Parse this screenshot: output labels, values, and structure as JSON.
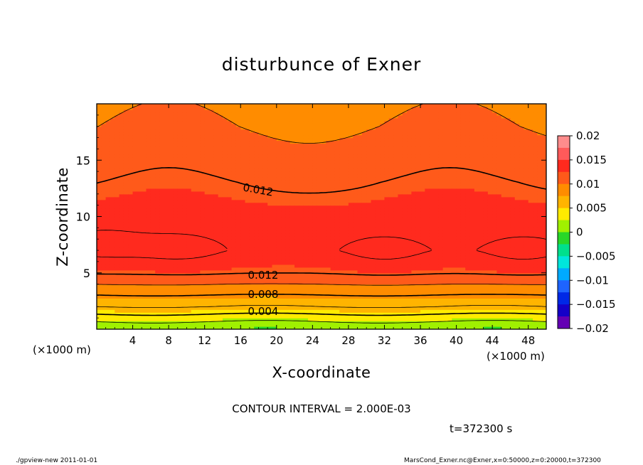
{
  "title": "disturbunce of Exner",
  "contour_interval_text": "CONTOUR INTERVAL = 2.000E-03",
  "time_text": "t=372300 s",
  "footer_left": "./gpview-new   2011-01-01",
  "footer_right": "MarsCond_Exner.nc@Exner,x=0:50000,z=0:20000,t=372300",
  "chart_data": {
    "type": "heatmap",
    "title": "disturbunce of Exner",
    "xlabel": "X-coordinate",
    "ylabel": "Z-coordinate",
    "x_unit_label": "(×1000 m)",
    "z_unit_label": "(×1000 m)",
    "xlim": [
      0,
      50
    ],
    "ylim": [
      0,
      20
    ],
    "x_ticks": [
      "4",
      "8",
      "12",
      "16",
      "20",
      "24",
      "28",
      "32",
      "36",
      "40",
      "44",
      "48"
    ],
    "y_ticks": [
      "5",
      "10",
      "15"
    ],
    "contour_interval": 0.002,
    "contour_labels": [
      "0.012",
      "0.012",
      "0.008",
      "0.004"
    ],
    "colorbar": {
      "ticks": [
        "0.02",
        "0.015",
        "0.01",
        "0.005",
        "0",
        "−0.005",
        "−0.01",
        "−0.015",
        "−0.02"
      ],
      "range": [
        -0.02,
        0.02
      ],
      "step": 0.0025
    },
    "field_levels_bottom_to_top": [
      {
        "z": 0.0,
        "value": 0.0
      },
      {
        "z": 0.5,
        "value": 0.0015
      },
      {
        "z": 1.0,
        "value": 0.003
      },
      {
        "z": 1.5,
        "value": 0.0045
      },
      {
        "z": 2.0,
        "value": 0.006
      },
      {
        "z": 2.8,
        "value": 0.0075
      },
      {
        "z": 3.5,
        "value": 0.009
      },
      {
        "z": 4.5,
        "value": 0.011
      },
      {
        "z": 5.0,
        "value": 0.012
      },
      {
        "z": 7.0,
        "value": 0.0135
      },
      {
        "z": 10.0,
        "value": 0.013
      },
      {
        "z": 13.0,
        "value": 0.012
      },
      {
        "z": 15.5,
        "value": 0.011
      },
      {
        "z": 18.0,
        "value": 0.01
      },
      {
        "z": 20.0,
        "value": 0.0095
      }
    ],
    "maxima_regions": [
      {
        "x_center": 9.5,
        "z_center": 7.0,
        "value": 0.014
      },
      {
        "x_center": 32.0,
        "z_center": 6.8,
        "value": 0.014
      },
      {
        "x_center": 47.5,
        "z_center": 6.8,
        "value": 0.014
      },
      {
        "x_center": 0.5,
        "z_center": 7.5,
        "value": 0.014
      }
    ]
  },
  "colors": {
    "c_0.02": "#ff8c8c",
    "c_0.0175": "#ff5a5a",
    "c_0.015": "#ff2a1e",
    "c_0.0125": "#ff5a1a",
    "c_0.01": "#ff8c00",
    "c_0.0075": "#ffb400",
    "c_0.005": "#ffeb00",
    "c_0.0025": "#a0f000",
    "c_0": "#28d728",
    "c_-0.0025": "#00e08c",
    "c_-0.005": "#00e6dc",
    "c_-0.0075": "#00aaff",
    "c_-0.01": "#1e64ff",
    "c_-0.0125": "#0028e6",
    "c_-0.015": "#1400c8",
    "c_-0.0175": "#6400b4",
    "contour_line": "#000000"
  }
}
